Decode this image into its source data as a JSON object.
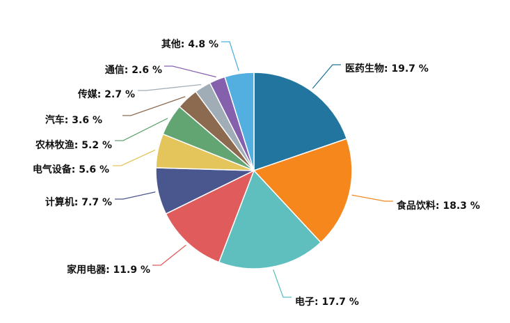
{
  "chart_data": {
    "type": "pie",
    "unit": "%",
    "slices": [
      {
        "name": "医药生物",
        "value": 19.7,
        "label": "医药生物: 19.7 %",
        "color": "#21759f"
      },
      {
        "name": "食品饮料",
        "value": 18.3,
        "label": "食品饮料: 18.3 %",
        "color": "#f5871c"
      },
      {
        "name": "电子",
        "value": 17.7,
        "label": "电子: 17.7 %",
        "color": "#5fbfbf"
      },
      {
        "name": "家用电器",
        "value": 11.9,
        "label": "家用电器: 11.9 %",
        "color": "#e05c5c"
      },
      {
        "name": "计算机",
        "value": 7.7,
        "label": "计算机: 7.7 %",
        "color": "#4a568e"
      },
      {
        "name": "电气设备",
        "value": 5.6,
        "label": "电气设备: 5.6 %",
        "color": "#e3c55c"
      },
      {
        "name": "农林牧渔",
        "value": 5.2,
        "label": "农林牧渔: 5.2 %",
        "color": "#63a473"
      },
      {
        "name": "汽车",
        "value": 3.6,
        "label": "汽车: 3.6 %",
        "color": "#8b6a50"
      },
      {
        "name": "传媒",
        "value": 2.7,
        "label": "传媒: 2.7 %",
        "color": "#a1adb6"
      },
      {
        "name": "通信",
        "value": 2.6,
        "label": "通信: 2.6 %",
        "color": "#8561ad"
      },
      {
        "name": "其他",
        "value": 4.8,
        "label": "其他: 4.8 %",
        "color": "#52afdf"
      }
    ]
  }
}
